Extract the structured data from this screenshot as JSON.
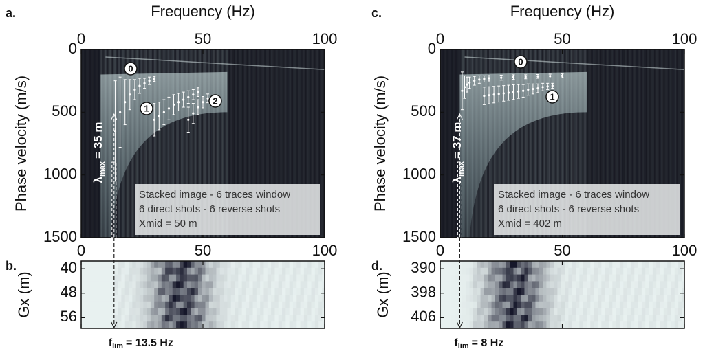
{
  "chart_data": [
    {
      "type": "heatmap",
      "panel_label": "a.",
      "xlabel": "Frequency (Hz)",
      "ylabel": "Phase velocity (m/s)",
      "xlim": [
        0,
        100
      ],
      "xticks": [
        0,
        50,
        100
      ],
      "ylim": [
        0,
        1500
      ],
      "yticks": [
        0,
        500,
        1000,
        1500
      ],
      "y_inverted": true,
      "lambda_label": {
        "symbol": "λ",
        "sub": "max",
        "rest": "= 35 m"
      },
      "notes": [
        "Stacked image - 6 traces window",
        "6 direct shots - 6 reverse shots",
        "Xmid = 50 m"
      ],
      "series": [
        {
          "name": "0",
          "color": "#ffffff",
          "x": [
            14,
            16,
            18,
            20,
            22,
            24,
            26,
            28,
            30
          ],
          "values": [
            650,
            500,
            420,
            360,
            320,
            290,
            270,
            250,
            235
          ],
          "errors": [
            400,
            280,
            180,
            120,
            80,
            60,
            40,
            30,
            20
          ]
        },
        {
          "name": "1",
          "color": "#ffffff",
          "x": [
            30,
            32,
            34,
            36,
            38,
            40,
            42,
            44,
            46,
            48
          ],
          "values": [
            560,
            530,
            500,
            470,
            440,
            420,
            400,
            380,
            360,
            340
          ],
          "errors": [
            130,
            110,
            100,
            90,
            80,
            70,
            60,
            50,
            40,
            35
          ]
        },
        {
          "name": "2",
          "color": "#ffffff",
          "x": [
            44,
            46,
            48,
            50,
            52
          ],
          "values": [
            560,
            510,
            460,
            420,
            390
          ],
          "errors": [
            100,
            80,
            60,
            45,
            35
          ]
        }
      ]
    },
    {
      "type": "heatmap",
      "panel_label": "b.",
      "ylabel": "Gx (m)",
      "xlim": [
        0,
        100
      ],
      "xticks": [
        0,
        50,
        100
      ],
      "ylim": [
        37.5,
        59.5
      ],
      "yticks": [
        40,
        48,
        56
      ],
      "y_inverted": true,
      "flim": {
        "value": 13.5,
        "symbol": "f",
        "sub": "lim",
        "rest": "= 13.5 Hz"
      }
    },
    {
      "type": "heatmap",
      "panel_label": "c.",
      "xlabel": "Frequency (Hz)",
      "ylabel": "Phase velocity (m/s)",
      "xlim": [
        0,
        100
      ],
      "xticks": [
        0,
        50,
        100
      ],
      "ylim": [
        0,
        1500
      ],
      "yticks": [
        0,
        500,
        1000,
        1500
      ],
      "y_inverted": true,
      "lambda_label": {
        "symbol": "λ",
        "sub": "max",
        "rest": "= 37 m"
      },
      "notes": [
        "Stacked image - 6 traces window",
        "6 direct shots - 6 reverse shots",
        "Xmid = 402 m"
      ],
      "series": [
        {
          "name": "0",
          "color": "#ffffff",
          "x": [
            9,
            10,
            11,
            12,
            14,
            16,
            18,
            20,
            25,
            30,
            35,
            40,
            45,
            50
          ],
          "values": [
            330,
            300,
            280,
            265,
            250,
            240,
            235,
            230,
            225,
            220,
            218,
            215,
            212,
            210
          ],
          "errors": [
            150,
            90,
            60,
            45,
            35,
            30,
            25,
            22,
            20,
            18,
            16,
            15,
            15,
            15
          ]
        },
        {
          "name": "1",
          "color": "#ffffff",
          "x": [
            18,
            20,
            22,
            24,
            26,
            28,
            30,
            32,
            34,
            36,
            38,
            40,
            42,
            44,
            46
          ],
          "values": [
            370,
            365,
            360,
            355,
            350,
            345,
            340,
            335,
            330,
            320,
            315,
            310,
            300,
            295,
            290
          ],
          "errors": [
            70,
            68,
            66,
            64,
            62,
            60,
            58,
            55,
            50,
            45,
            40,
            35,
            30,
            25,
            20
          ]
        }
      ]
    },
    {
      "type": "heatmap",
      "panel_label": "d.",
      "ylabel": "Gx (m)",
      "xlim": [
        0,
        100
      ],
      "xticks": [
        0,
        50,
        100
      ],
      "ylim": [
        387.5,
        409.5
      ],
      "yticks": [
        390,
        398,
        406
      ],
      "y_inverted": true,
      "flim": {
        "value": 8,
        "symbol": "f",
        "sub": "lim",
        "rest": "= 8 Hz"
      }
    }
  ]
}
